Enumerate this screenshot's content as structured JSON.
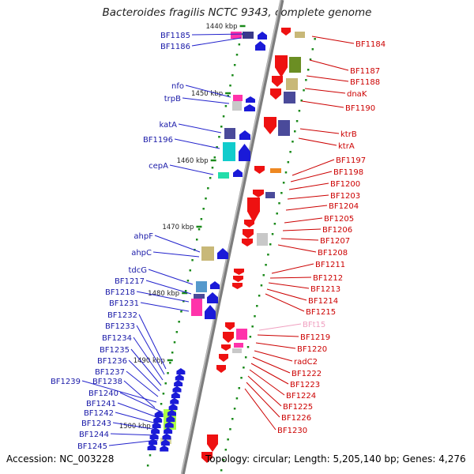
{
  "title": "Bacteroides fragilis NCTC 9343, complete genome",
  "accession": "Accession: NC_003228",
  "summary": "Topology: circular; Length: 5,205,140 bp; Genes: 4,276",
  "colors": {
    "backbone": "#8a8a8a",
    "left_strand_labels": "#1a1aa8",
    "right_strand_labels": "#cc0000",
    "pseudo_label": "#f0a0c0",
    "tick": "#1a8a1a"
  },
  "ticks": [
    {
      "label": "1440 kbp"
    },
    {
      "label": "1450 kbp"
    },
    {
      "label": "1460 kbp"
    },
    {
      "label": "1470 kbp"
    },
    {
      "label": "1480 kbp"
    },
    {
      "label": "1490 kbp"
    },
    {
      "label": "1500 kbp"
    }
  ],
  "left_labels": [
    "BF1185",
    "BF1186",
    "nfo",
    "trpB",
    "katA",
    "BF1196",
    "cepA",
    "ahpF",
    "ahpC",
    "tdcG",
    "BF1217",
    "BF1218",
    "BF1231",
    "BF1232",
    "BF1233",
    "BF1234",
    "BF1235",
    "BF1236",
    "BF1237",
    "BF1239",
    "BF1238",
    "BF1240",
    "BF1241",
    "BF1242",
    "BF1243",
    "BF1244",
    "BF1245"
  ],
  "right_labels": [
    "BF1184",
    "BF1187",
    "BF1188",
    "dnaK",
    "BF1190",
    "ktrB",
    "ktrA",
    "BF1197",
    "BF1198",
    "BF1200",
    "BF1203",
    "BF1204",
    "BF1205",
    "BF1206",
    "BF1207",
    "BF1208",
    "BF1211",
    "BF1212",
    "BF1213",
    "BF1214",
    "BF1215",
    "BFt15",
    "BF1219",
    "BF1220",
    "radC2",
    "BF1222",
    "BF1223",
    "BF1224",
    "BF1225",
    "BF1226",
    "BF1230"
  ]
}
